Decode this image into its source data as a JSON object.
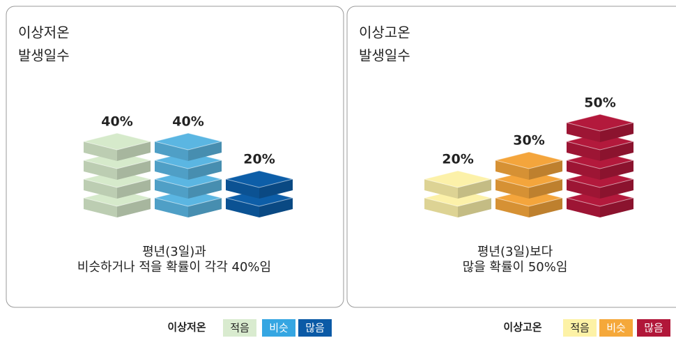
{
  "chart_data": [
    {
      "type": "bar",
      "title": [
        "이상저온",
        "발생일수"
      ],
      "categories": [
        "적음",
        "비슷",
        "많음"
      ],
      "values": [
        40,
        40,
        20
      ],
      "value_labels": [
        "40%",
        "40%",
        "20%"
      ],
      "colors": [
        "#d6eacb",
        "#5bb6e2",
        "#0d5ea8"
      ],
      "note": [
        "평년(3일)과",
        "비슷하거나 적을 확률이 각각 40%임"
      ],
      "legend_title": "이상저온",
      "legend_colors": [
        "#d9ebcf",
        "#35a6e2",
        "#0b5aa6"
      ]
    },
    {
      "type": "bar",
      "title": [
        "이상고온",
        "발생일수"
      ],
      "categories": [
        "적음",
        "비슷",
        "많음"
      ],
      "values": [
        20,
        30,
        50
      ],
      "value_labels": [
        "20%",
        "30%",
        "50%"
      ],
      "colors": [
        "#fcf1a9",
        "#f4a53c",
        "#b3193c"
      ],
      "note": [
        "평년(3일)보다",
        "많을 확률이 50%임"
      ],
      "legend_title": "이상고온",
      "legend_colors": [
        "#fdf2a6",
        "#f5a83a",
        "#b11739"
      ]
    }
  ]
}
